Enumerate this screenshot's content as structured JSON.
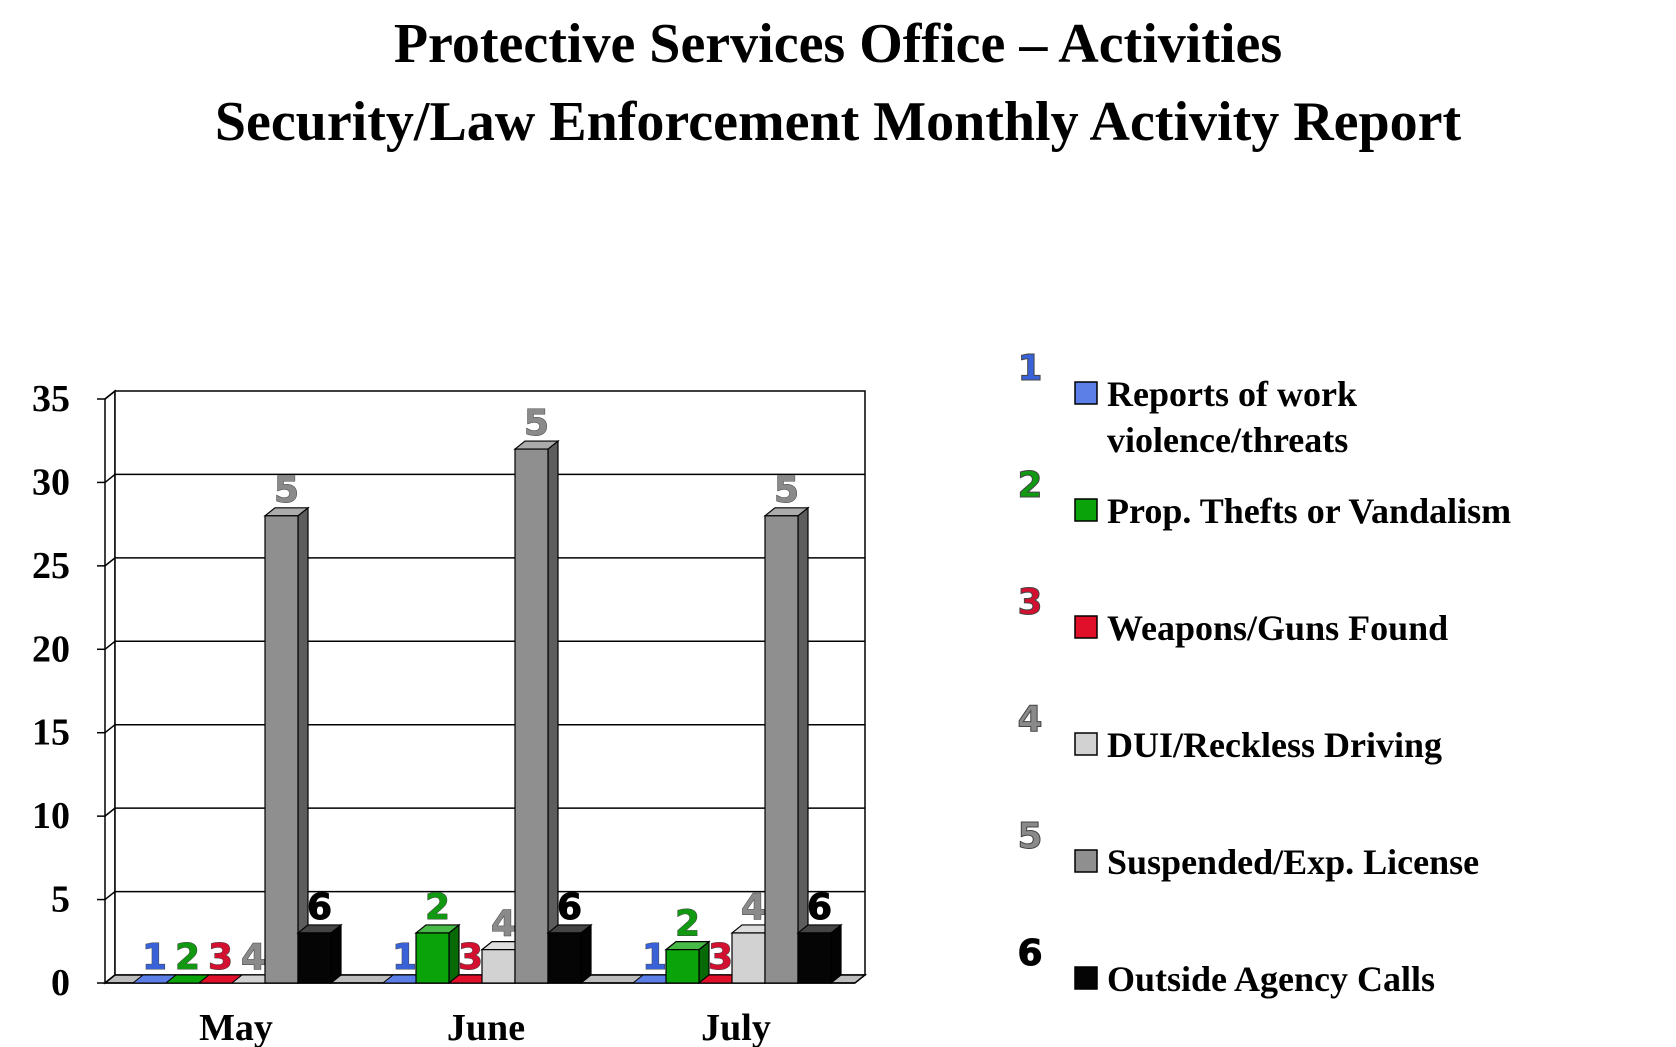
{
  "title_line1": "Protective Services Office – Activities",
  "title_line2": "Security/Law Enforcement Monthly Activity Report",
  "chart_data": {
    "type": "bar",
    "categories": [
      "May",
      "June",
      "July"
    ],
    "ylim": [
      0,
      35
    ],
    "yticks": [
      0,
      5,
      10,
      15,
      20,
      25,
      30,
      35
    ],
    "grid": true,
    "legend_position": "right",
    "series": [
      {
        "marker": "1",
        "name": "Reports of work violence/threats",
        "name_lines": [
          "Reports of work",
          "violence/threats"
        ],
        "color": "#5b7fe6",
        "values": [
          0,
          0,
          0
        ]
      },
      {
        "marker": "2",
        "name": "Prop. Thefts or Vandalism",
        "name_lines": [
          "Prop. Thefts or Vandalism"
        ],
        "color": "#0aa30a",
        "values": [
          0,
          3,
          2
        ]
      },
      {
        "marker": "3",
        "name": "Weapons/Guns Found",
        "name_lines": [
          "Weapons/Guns Found"
        ],
        "color": "#e0102a",
        "values": [
          0,
          0,
          0
        ]
      },
      {
        "marker": "4",
        "name": "DUI/Reckless Driving",
        "name_lines": [
          "DUI/Reckless Driving"
        ],
        "color": "#d2d2d2",
        "values": [
          0,
          2,
          3
        ]
      },
      {
        "marker": "5",
        "name": "Suspended/Exp. License",
        "name_lines": [
          "Suspended/Exp. License"
        ],
        "color": "#8f8f8f",
        "values": [
          28,
          32,
          28
        ]
      },
      {
        "marker": "6",
        "name": "Outside Agency Calls",
        "name_lines": [
          "Outside Agency Calls"
        ],
        "color": "#050505",
        "values": [
          3,
          3,
          3
        ]
      }
    ],
    "label_colors": [
      "#3a62d8",
      "#119a11",
      "#d41030",
      "#8a8a8a",
      "#8a8a8a",
      "#000000"
    ]
  }
}
